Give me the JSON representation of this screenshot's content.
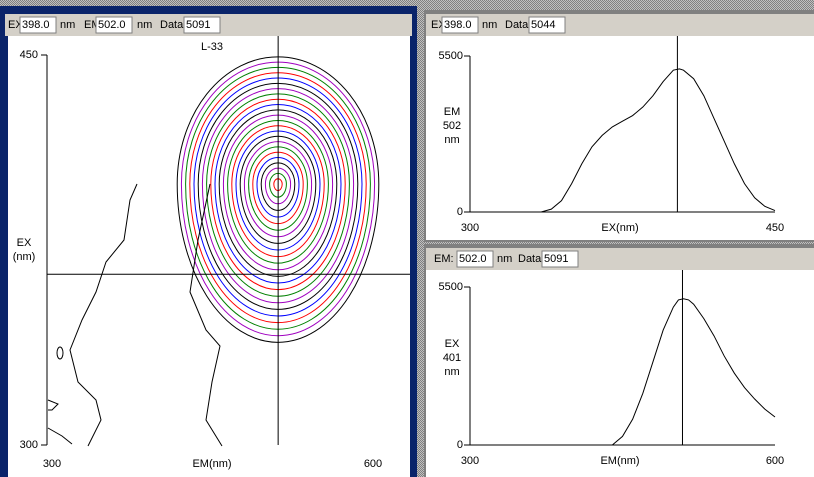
{
  "contour_panel": {
    "header": {
      "ex_label": "EX:",
      "ex_value": "398.0",
      "ex_unit": "nm",
      "em_label": "EM:",
      "em_value": "502.0",
      "em_unit": "nm",
      "data_label": "Data:",
      "data_value": "5091"
    },
    "title": "L-33",
    "xlim": [
      300,
      600
    ],
    "ylim": [
      300,
      450
    ],
    "xticks": [
      300,
      600
    ],
    "yticks": [
      300,
      450
    ],
    "xlabel": "EM(nm)",
    "ylabel": [
      "EX",
      "(nm)"
    ],
    "cursor": {
      "em": 502.0,
      "ex": 398.0
    }
  },
  "ex_spectrum_panel": {
    "header": {
      "ex_label": "EX:",
      "ex_value": "398.0",
      "ex_unit": "nm",
      "data_label": "Data:",
      "data_value": "5044"
    },
    "xlim": [
      300,
      450
    ],
    "ylim": [
      0,
      5500
    ],
    "xticks": [
      300,
      450
    ],
    "yticks": [
      0,
      5500
    ],
    "xlabel": "EX(nm)",
    "ylabel": [
      "EM",
      "502",
      "nm"
    ],
    "cursor": 402,
    "x": [
      330,
      335,
      340,
      345,
      350,
      355,
      360,
      365,
      370,
      375,
      380,
      385,
      390,
      395,
      400,
      403,
      405,
      410,
      415,
      420,
      425,
      430,
      435,
      440,
      445,
      450
    ],
    "values": [
      0,
      0,
      100,
      400,
      1000,
      1700,
      2300,
      2700,
      3000,
      3200,
      3400,
      3700,
      4100,
      4600,
      5000,
      5044,
      5000,
      4700,
      4100,
      3300,
      2500,
      1700,
      1000,
      500,
      200,
      50
    ]
  },
  "em_spectrum_panel": {
    "header": {
      "em_label": "EM:",
      "em_value": "502.0",
      "em_unit": "nm",
      "data_label": "Data:",
      "data_value": "5091"
    },
    "xlim": [
      300,
      600
    ],
    "ylim": [
      0,
      5500
    ],
    "xticks": [
      300,
      600
    ],
    "yticks": [
      0,
      5500
    ],
    "xlabel": "EM(nm)",
    "ylabel": [
      "EX",
      "401",
      "nm"
    ],
    "cursor": 509,
    "x": [
      440,
      450,
      460,
      470,
      480,
      490,
      500,
      505,
      510,
      515,
      520,
      530,
      540,
      550,
      560,
      570,
      580,
      590,
      600
    ],
    "values": [
      0,
      300,
      900,
      1800,
      2900,
      4000,
      4800,
      5050,
      5091,
      5050,
      4900,
      4400,
      3800,
      3100,
      2500,
      2000,
      1600,
      1250,
      975
    ]
  }
}
